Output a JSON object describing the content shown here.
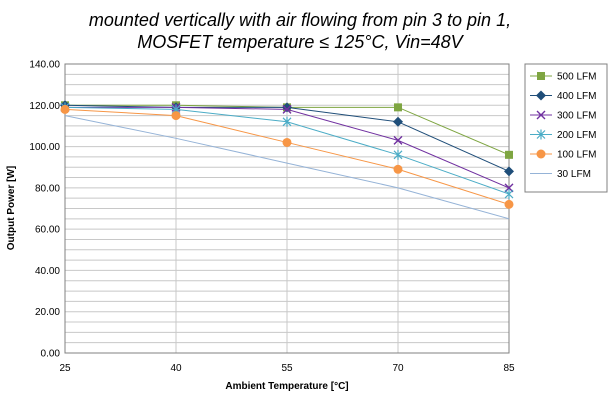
{
  "chart_data": {
    "type": "line",
    "title_lines": [
      "mounted vertically with air flowing from pin 3 to pin 1,",
      "MOSFET temperature  ≤ 125°C, Vin=48V"
    ],
    "xlabel": "Ambient Temperature [°C]",
    "ylabel": "Output Power [W]",
    "x": [
      25,
      40,
      55,
      70,
      85
    ],
    "x_tick_labels": [
      "25",
      "40",
      "55",
      "70",
      "85"
    ],
    "ylim": [
      0,
      140
    ],
    "y_ticks": [
      0,
      20,
      40,
      60,
      80,
      100,
      120,
      140
    ],
    "y_tick_labels": [
      "0.00",
      "20.00",
      "40.00",
      "60.00",
      "80.00",
      "100.00",
      "120.00",
      "140.00"
    ],
    "grid": true,
    "legend_position": "right",
    "series": [
      {
        "name": "500 LFM",
        "values": [
          120,
          120,
          119,
          119,
          96
        ],
        "color": "#7ea541",
        "marker": "square"
      },
      {
        "name": "400 LFM",
        "values": [
          120,
          119,
          119,
          112,
          88
        ],
        "color": "#1f4e79",
        "marker": "diamond"
      },
      {
        "name": "300 LFM",
        "values": [
          119,
          119,
          118,
          103,
          80
        ],
        "color": "#7030a0",
        "marker": "x"
      },
      {
        "name": "200 LFM",
        "values": [
          119,
          118,
          112,
          96,
          77
        ],
        "color": "#4bacc6",
        "marker": "star"
      },
      {
        "name": "100 LFM",
        "values": [
          118,
          115,
          102,
          89,
          72
        ],
        "color": "#f79646",
        "marker": "circle"
      },
      {
        "name": "30 LFM",
        "values": [
          115,
          104,
          92,
          80,
          65
        ],
        "color": "#95b3d7",
        "marker": "none"
      }
    ]
  }
}
